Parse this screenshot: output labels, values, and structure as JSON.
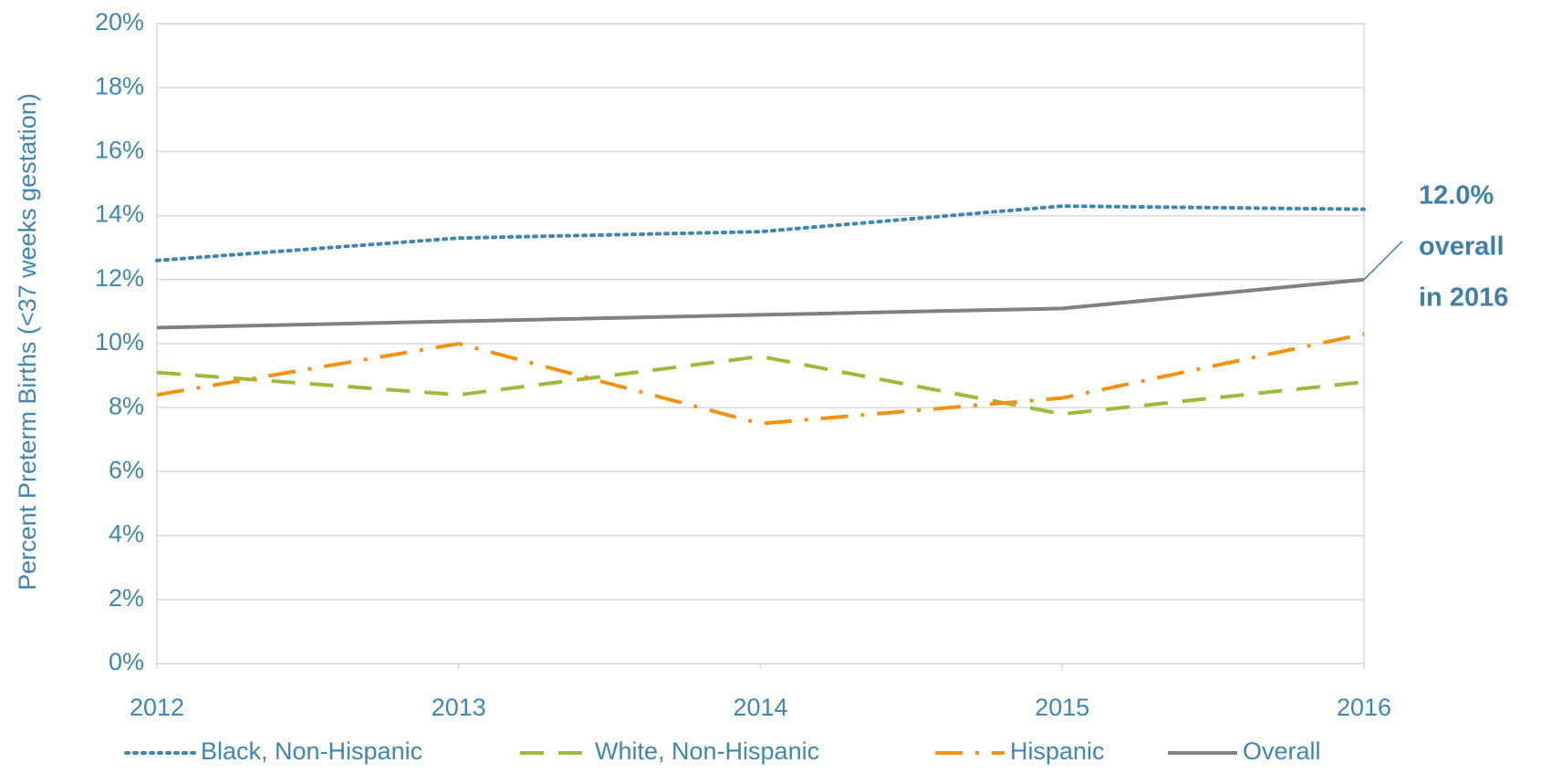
{
  "chart_data": {
    "type": "line",
    "y_axis_label": "Percent Preterm Births (<37 weeks gestation)",
    "x": [
      2012,
      2013,
      2014,
      2015,
      2016
    ],
    "xlim": [
      2012,
      2016
    ],
    "xticks": [
      2012,
      2013,
      2014,
      2015,
      2016
    ],
    "ylim": [
      0,
      20
    ],
    "yticks": [
      {
        "value": 0,
        "label": "0%"
      },
      {
        "value": 2,
        "label": "2%"
      },
      {
        "value": 4,
        "label": "4%"
      },
      {
        "value": 6,
        "label": "6%"
      },
      {
        "value": 8,
        "label": "8%"
      },
      {
        "value": 10,
        "label": "10%"
      },
      {
        "value": 12,
        "label": "12%"
      },
      {
        "value": 14,
        "label": "14%"
      },
      {
        "value": 16,
        "label": "16%"
      },
      {
        "value": 18,
        "label": "18%"
      },
      {
        "value": 20,
        "label": "20%"
      }
    ],
    "grid": true,
    "legend": "bottom",
    "series": [
      {
        "name": "Black, Non-Hispanic",
        "color": "#3f86b0",
        "dash": "dotted",
        "values": [
          12.6,
          13.3,
          13.5,
          14.3,
          14.2
        ]
      },
      {
        "name": "White, Non-Hispanic",
        "color": "#9bbb3b",
        "dash": "dashed",
        "values": [
          9.1,
          8.4,
          9.6,
          7.8,
          8.8
        ]
      },
      {
        "name": "Hispanic",
        "color": "#f39112",
        "dash": "dashdot",
        "values": [
          8.4,
          10.0,
          7.5,
          8.3,
          10.3
        ]
      },
      {
        "name": "Overall",
        "color": "#808080",
        "dash": "solid",
        "values": [
          10.5,
          10.7,
          10.9,
          11.1,
          12.0
        ]
      }
    ],
    "annotation": {
      "lines": [
        "12.0%",
        "overall",
        "in 2016"
      ]
    }
  }
}
